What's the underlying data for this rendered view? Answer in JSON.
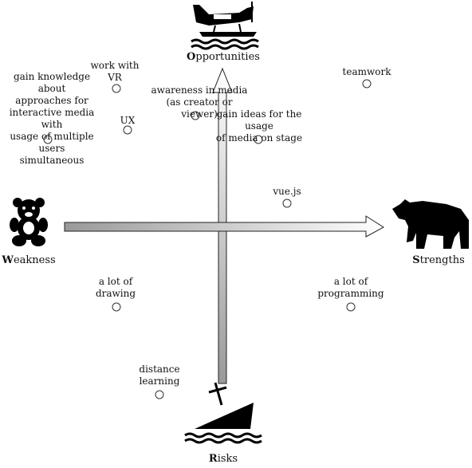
{
  "axes": {
    "top": {
      "initial": "O",
      "rest": "pportunities",
      "icon": "seaplane-icon"
    },
    "bottom": {
      "initial": "R",
      "rest": "isks",
      "icon": "sinking-ship-icon"
    },
    "left": {
      "initial": "W",
      "rest": "eakness",
      "icon": "teddy-bear-icon"
    },
    "right": {
      "initial": "S",
      "rest": "trengths",
      "icon": "bear-icon"
    }
  },
  "points": [
    {
      "id": "work-with-vr",
      "text": "work with\nVR"
    },
    {
      "id": "gain-knowledge",
      "text": "gain knowledge about\napproaches for\ninteractive media with\nusage of multiple users\nsimultaneous"
    },
    {
      "id": "ux",
      "text": "UX"
    },
    {
      "id": "awareness-media",
      "text": "awareness in media\n(as creator or viewer)"
    },
    {
      "id": "gain-ideas",
      "text": "gain ideas for the usage\nof media on stage"
    },
    {
      "id": "teamwork",
      "text": "teamwork"
    },
    {
      "id": "vuejs",
      "text": "vue.js"
    },
    {
      "id": "a-lot-of-drawing",
      "text": "a lot of\ndrawing"
    },
    {
      "id": "a-lot-of-programming",
      "text": "a lot of\nprogramming"
    },
    {
      "id": "distance-learning",
      "text": "distance\nlearning"
    }
  ],
  "colors": {
    "arrow_fill_dark": "#999999",
    "arrow_fill_light": "#ffffff",
    "stroke": "#222222",
    "icon": "#000000"
  }
}
